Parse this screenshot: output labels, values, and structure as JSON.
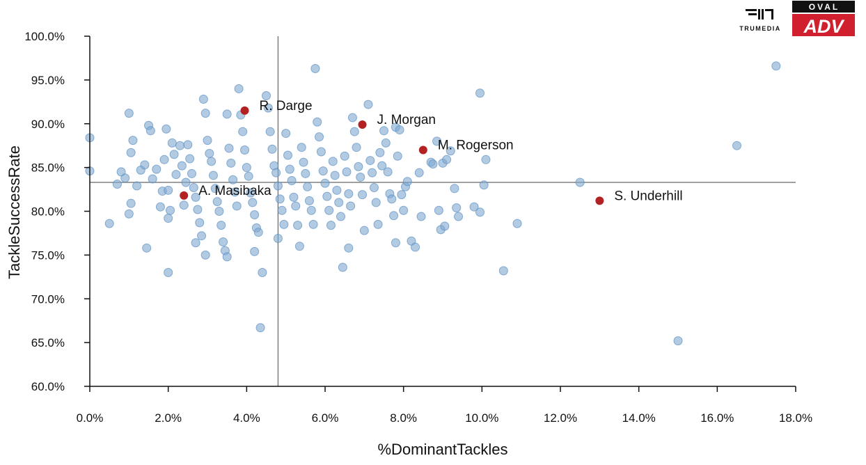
{
  "branding": {
    "trumedia_label": "TRUMEDIA",
    "oval_label": "OVAL",
    "adv_label": "ADV",
    "adv_color": "#d0202e",
    "oval_bg": "#111111"
  },
  "chart_data": {
    "type": "scatter",
    "xlabel": "%DominantTackles",
    "ylabel": "TackleSuccessRate",
    "xlim": [
      0,
      18
    ],
    "ylim": [
      60,
      100
    ],
    "x_ticks": [
      "0.0%",
      "2.0%",
      "4.0%",
      "6.0%",
      "8.0%",
      "10.0%",
      "12.0%",
      "14.0%",
      "16.0%",
      "18.0%"
    ],
    "y_ticks": [
      "60.0%",
      "65.0%",
      "70.0%",
      "75.0%",
      "80.0%",
      "85.0%",
      "90.0%",
      "95.0%",
      "100.0%"
    ],
    "reference_lines": {
      "x": 4.8,
      "y": 83.3
    },
    "point_color": "#7fa8d1",
    "highlight_color": "#b22222",
    "grid": false,
    "series": [
      {
        "points": [
          [
            0.0,
            88.4
          ],
          [
            0.0,
            84.6
          ],
          [
            0.5,
            78.6
          ],
          [
            0.7,
            83.1
          ],
          [
            0.8,
            84.5
          ],
          [
            0.9,
            83.8
          ],
          [
            1.0,
            91.2
          ],
          [
            1.05,
            86.7
          ],
          [
            1.1,
            88.1
          ],
          [
            1.0,
            79.7
          ],
          [
            1.05,
            80.9
          ],
          [
            1.2,
            82.9
          ],
          [
            1.3,
            84.7
          ],
          [
            1.4,
            85.3
          ],
          [
            1.5,
            89.8
          ],
          [
            1.55,
            89.2
          ],
          [
            1.6,
            83.7
          ],
          [
            1.7,
            84.8
          ],
          [
            1.45,
            75.8
          ],
          [
            1.8,
            80.5
          ],
          [
            1.85,
            82.3
          ],
          [
            1.9,
            85.9
          ],
          [
            1.95,
            89.4
          ],
          [
            2.0,
            82.4
          ],
          [
            2.05,
            80.1
          ],
          [
            2.1,
            87.8
          ],
          [
            2.15,
            86.5
          ],
          [
            2.2,
            84.2
          ],
          [
            2.0,
            79.2
          ],
          [
            2.0,
            73.0
          ],
          [
            2.3,
            87.5
          ],
          [
            2.35,
            85.2
          ],
          [
            2.4,
            80.7
          ],
          [
            2.45,
            83.3
          ],
          [
            2.5,
            87.6
          ],
          [
            2.55,
            86.0
          ],
          [
            2.6,
            84.3
          ],
          [
            2.65,
            82.7
          ],
          [
            2.7,
            81.6
          ],
          [
            2.75,
            80.2
          ],
          [
            2.8,
            78.7
          ],
          [
            2.85,
            77.2
          ],
          [
            2.9,
            92.8
          ],
          [
            2.95,
            91.2
          ],
          [
            3.0,
            88.1
          ],
          [
            3.05,
            86.6
          ],
          [
            3.1,
            85.7
          ],
          [
            3.15,
            84.1
          ],
          [
            3.2,
            82.6
          ],
          [
            3.25,
            81.1
          ],
          [
            3.3,
            80.0
          ],
          [
            3.35,
            78.4
          ],
          [
            3.4,
            76.5
          ],
          [
            3.45,
            75.5
          ],
          [
            3.5,
            91.1
          ],
          [
            3.55,
            87.2
          ],
          [
            3.6,
            85.5
          ],
          [
            3.65,
            83.6
          ],
          [
            3.7,
            82.2
          ],
          [
            3.75,
            80.6
          ],
          [
            2.7,
            76.4
          ],
          [
            2.95,
            75.0
          ],
          [
            3.5,
            74.8
          ],
          [
            3.8,
            94.0
          ],
          [
            3.85,
            91.0
          ],
          [
            3.9,
            89.1
          ],
          [
            3.95,
            87.0
          ],
          [
            4.0,
            85.0
          ],
          [
            4.05,
            84.0
          ],
          [
            4.1,
            82.1
          ],
          [
            4.15,
            81.0
          ],
          [
            4.2,
            79.6
          ],
          [
            4.25,
            78.1
          ],
          [
            4.3,
            77.6
          ],
          [
            4.2,
            75.4
          ],
          [
            4.4,
            73.0
          ],
          [
            4.35,
            66.7
          ],
          [
            4.5,
            93.2
          ],
          [
            4.55,
            91.8
          ],
          [
            4.6,
            89.1
          ],
          [
            4.65,
            87.1
          ],
          [
            4.7,
            85.2
          ],
          [
            4.75,
            84.4
          ],
          [
            4.8,
            82.9
          ],
          [
            4.85,
            81.4
          ],
          [
            4.9,
            80.1
          ],
          [
            4.95,
            78.5
          ],
          [
            4.8,
            76.9
          ],
          [
            5.0,
            88.9
          ],
          [
            5.05,
            86.4
          ],
          [
            5.1,
            84.8
          ],
          [
            5.15,
            83.5
          ],
          [
            5.2,
            81.6
          ],
          [
            5.25,
            80.6
          ],
          [
            5.3,
            78.4
          ],
          [
            5.35,
            76.0
          ],
          [
            5.4,
            87.3
          ],
          [
            5.45,
            85.6
          ],
          [
            5.5,
            84.3
          ],
          [
            5.55,
            82.8
          ],
          [
            5.6,
            81.2
          ],
          [
            5.65,
            80.1
          ],
          [
            5.7,
            78.5
          ],
          [
            5.75,
            96.3
          ],
          [
            5.8,
            90.2
          ],
          [
            5.85,
            88.5
          ],
          [
            5.9,
            86.8
          ],
          [
            5.95,
            84.6
          ],
          [
            6.0,
            83.2
          ],
          [
            6.05,
            81.7
          ],
          [
            6.1,
            80.1
          ],
          [
            6.15,
            78.4
          ],
          [
            6.2,
            85.7
          ],
          [
            6.25,
            84.1
          ],
          [
            6.3,
            82.4
          ],
          [
            6.35,
            81.0
          ],
          [
            6.4,
            79.4
          ],
          [
            6.45,
            73.6
          ],
          [
            6.5,
            86.3
          ],
          [
            6.55,
            84.5
          ],
          [
            6.6,
            82.0
          ],
          [
            6.65,
            80.6
          ],
          [
            6.6,
            75.8
          ],
          [
            6.7,
            90.7
          ],
          [
            6.75,
            89.1
          ],
          [
            6.8,
            87.3
          ],
          [
            6.85,
            85.1
          ],
          [
            6.9,
            83.9
          ],
          [
            6.95,
            81.9
          ],
          [
            7.0,
            77.8
          ],
          [
            7.1,
            92.2
          ],
          [
            7.15,
            85.8
          ],
          [
            7.2,
            84.4
          ],
          [
            7.25,
            82.7
          ],
          [
            7.3,
            81.0
          ],
          [
            7.35,
            78.5
          ],
          [
            7.4,
            86.7
          ],
          [
            7.45,
            85.2
          ],
          [
            7.5,
            89.2
          ],
          [
            7.55,
            87.8
          ],
          [
            7.6,
            84.5
          ],
          [
            7.65,
            82.0
          ],
          [
            7.7,
            81.4
          ],
          [
            7.75,
            79.5
          ],
          [
            7.8,
            76.4
          ],
          [
            7.8,
            89.6
          ],
          [
            7.85,
            86.3
          ],
          [
            7.9,
            89.3
          ],
          [
            7.95,
            81.9
          ],
          [
            8.0,
            80.1
          ],
          [
            8.05,
            82.8
          ],
          [
            8.1,
            83.4
          ],
          [
            8.2,
            76.6
          ],
          [
            8.3,
            75.9
          ],
          [
            8.4,
            84.4
          ],
          [
            8.45,
            79.4
          ],
          [
            8.7,
            85.6
          ],
          [
            8.75,
            85.4
          ],
          [
            8.85,
            88.0
          ],
          [
            8.9,
            80.1
          ],
          [
            8.95,
            77.9
          ],
          [
            9.0,
            85.5
          ],
          [
            9.05,
            78.3
          ],
          [
            9.1,
            85.9
          ],
          [
            9.2,
            86.9
          ],
          [
            9.3,
            82.6
          ],
          [
            9.35,
            80.4
          ],
          [
            9.4,
            79.4
          ],
          [
            9.8,
            80.5
          ],
          [
            9.95,
            93.5
          ],
          [
            9.95,
            79.9
          ],
          [
            10.05,
            83.0
          ],
          [
            10.1,
            85.9
          ],
          [
            10.55,
            73.2
          ],
          [
            10.9,
            78.6
          ],
          [
            12.5,
            83.3
          ],
          [
            15.0,
            65.2
          ],
          [
            16.5,
            87.5
          ],
          [
            17.5,
            96.6
          ]
        ]
      }
    ],
    "highlighted": [
      {
        "label": "R. Darge",
        "x": 3.95,
        "y": 91.5
      },
      {
        "label": "J. Morgan",
        "x": 6.95,
        "y": 89.9
      },
      {
        "label": "M. Rogerson",
        "x": 8.5,
        "y": 87.0
      },
      {
        "label": "A. Masibaka",
        "x": 2.4,
        "y": 81.8
      },
      {
        "label": "S. Underhill",
        "x": 13.0,
        "y": 81.2
      }
    ]
  }
}
